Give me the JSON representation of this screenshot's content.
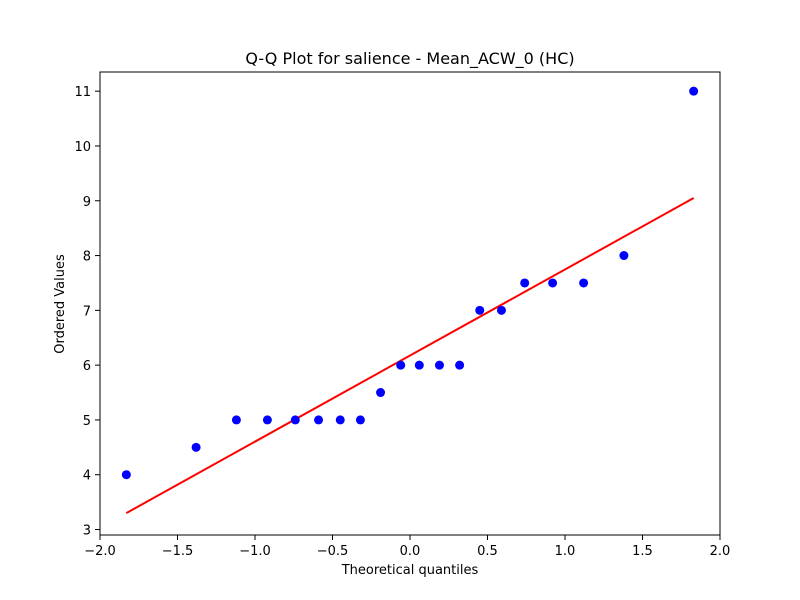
{
  "chart_data": {
    "type": "scatter",
    "title": "Q-Q Plot for salience - Mean_ACW_0 (HC)",
    "xlabel": "Theoretical quantiles",
    "ylabel": "Ordered Values",
    "xlim": [
      -2.0,
      2.0
    ],
    "ylim": [
      2.9,
      11.35
    ],
    "xticks": [
      -2.0,
      -1.5,
      -1.0,
      -0.5,
      0.0,
      0.5,
      1.0,
      1.5,
      2.0
    ],
    "xtick_labels": [
      "−2.0",
      "−1.5",
      "−1.0",
      "−0.5",
      "0.0",
      "0.5",
      "1.0",
      "1.5",
      "2.0"
    ],
    "yticks": [
      3,
      4,
      5,
      6,
      7,
      8,
      9,
      10,
      11
    ],
    "ytick_labels": [
      "3",
      "4",
      "5",
      "6",
      "7",
      "8",
      "9",
      "10",
      "11"
    ],
    "grid": false,
    "colors": {
      "points": "#0000ff",
      "fit_line": "#ff0000",
      "axes": "#000000"
    },
    "points": {
      "x": [
        -1.83,
        -1.38,
        -1.12,
        -0.92,
        -0.74,
        -0.59,
        -0.45,
        -0.32,
        -0.19,
        -0.06,
        0.06,
        0.19,
        0.32,
        0.45,
        0.59,
        0.74,
        0.92,
        1.12,
        1.38,
        1.83
      ],
      "y": [
        4,
        4.5,
        5,
        5,
        5,
        5,
        5,
        5,
        5.5,
        6,
        6,
        6,
        6,
        7,
        7,
        7.5,
        7.5,
        7.5,
        8,
        11
      ]
    },
    "fit_line": {
      "x": [
        -1.83,
        1.83
      ],
      "y": [
        3.3,
        9.05
      ]
    }
  }
}
